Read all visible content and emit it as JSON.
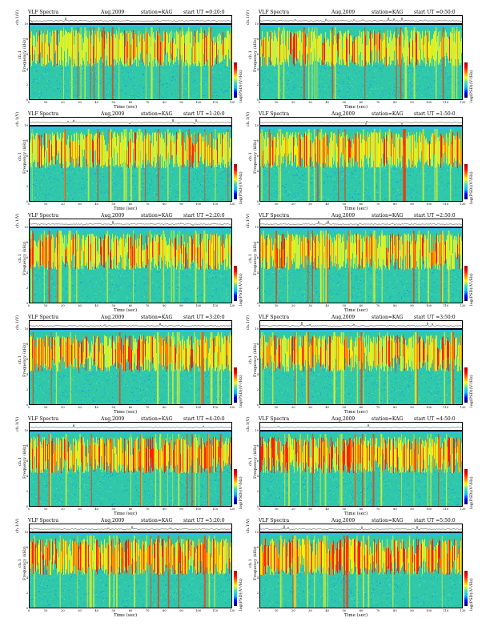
{
  "common": {
    "title": "VLF Spectra",
    "date": "Aug,2009",
    "station": "station=KAG",
    "chv_label": "ch.1(V)",
    "chv_ticks": [
      "0.20",
      "0.00",
      "-0.20"
    ],
    "ylabel_ch": "ch.1",
    "ylabel": "Frequency (kHz)",
    "yticks": [
      "10",
      "8",
      "6",
      "4",
      "2",
      "0"
    ],
    "xlabel": "Time (sec)",
    "xticks": [
      "0",
      "10",
      "20",
      "30",
      "40",
      "50",
      "60",
      "70",
      "80",
      "90",
      "100",
      "110",
      "120"
    ],
    "colorbar_label": "log(PSD)(V²/Hz)"
  },
  "panels": [
    {
      "start": "start UT =0:20:0"
    },
    {
      "start": "start UT =0:50:0"
    },
    {
      "start": "start UT =1:20:0"
    },
    {
      "start": "start UT =1:50:0"
    },
    {
      "start": "start UT =2:20:0"
    },
    {
      "start": "start UT =2:50:0"
    },
    {
      "start": "start UT =3:20:0"
    },
    {
      "start": "start UT =3:50:0"
    },
    {
      "start": "start UT =4:20:0"
    },
    {
      "start": "start UT =4:50:0"
    },
    {
      "start": "start UT =5:20:0"
    },
    {
      "start": "start UT =5:50:0"
    }
  ],
  "chart_data": {
    "type": "heatmap",
    "title": "VLF Spectra",
    "xlabel": "Time (sec)",
    "ylabel": "Frequency (kHz)",
    "xlim": [
      0,
      120
    ],
    "ylim": [
      0,
      10
    ],
    "colormap": [
      "#000060",
      "#0000ff",
      "#00c0ff",
      "#40e0b0",
      "#ffff00",
      "#ff8000",
      "#ff0000",
      "#b00000"
    ],
    "colorbar_label": "log(PSD)(V²/Hz)",
    "band_kHz": [
      5,
      9
    ],
    "background_color": "#30c8a8"
  }
}
